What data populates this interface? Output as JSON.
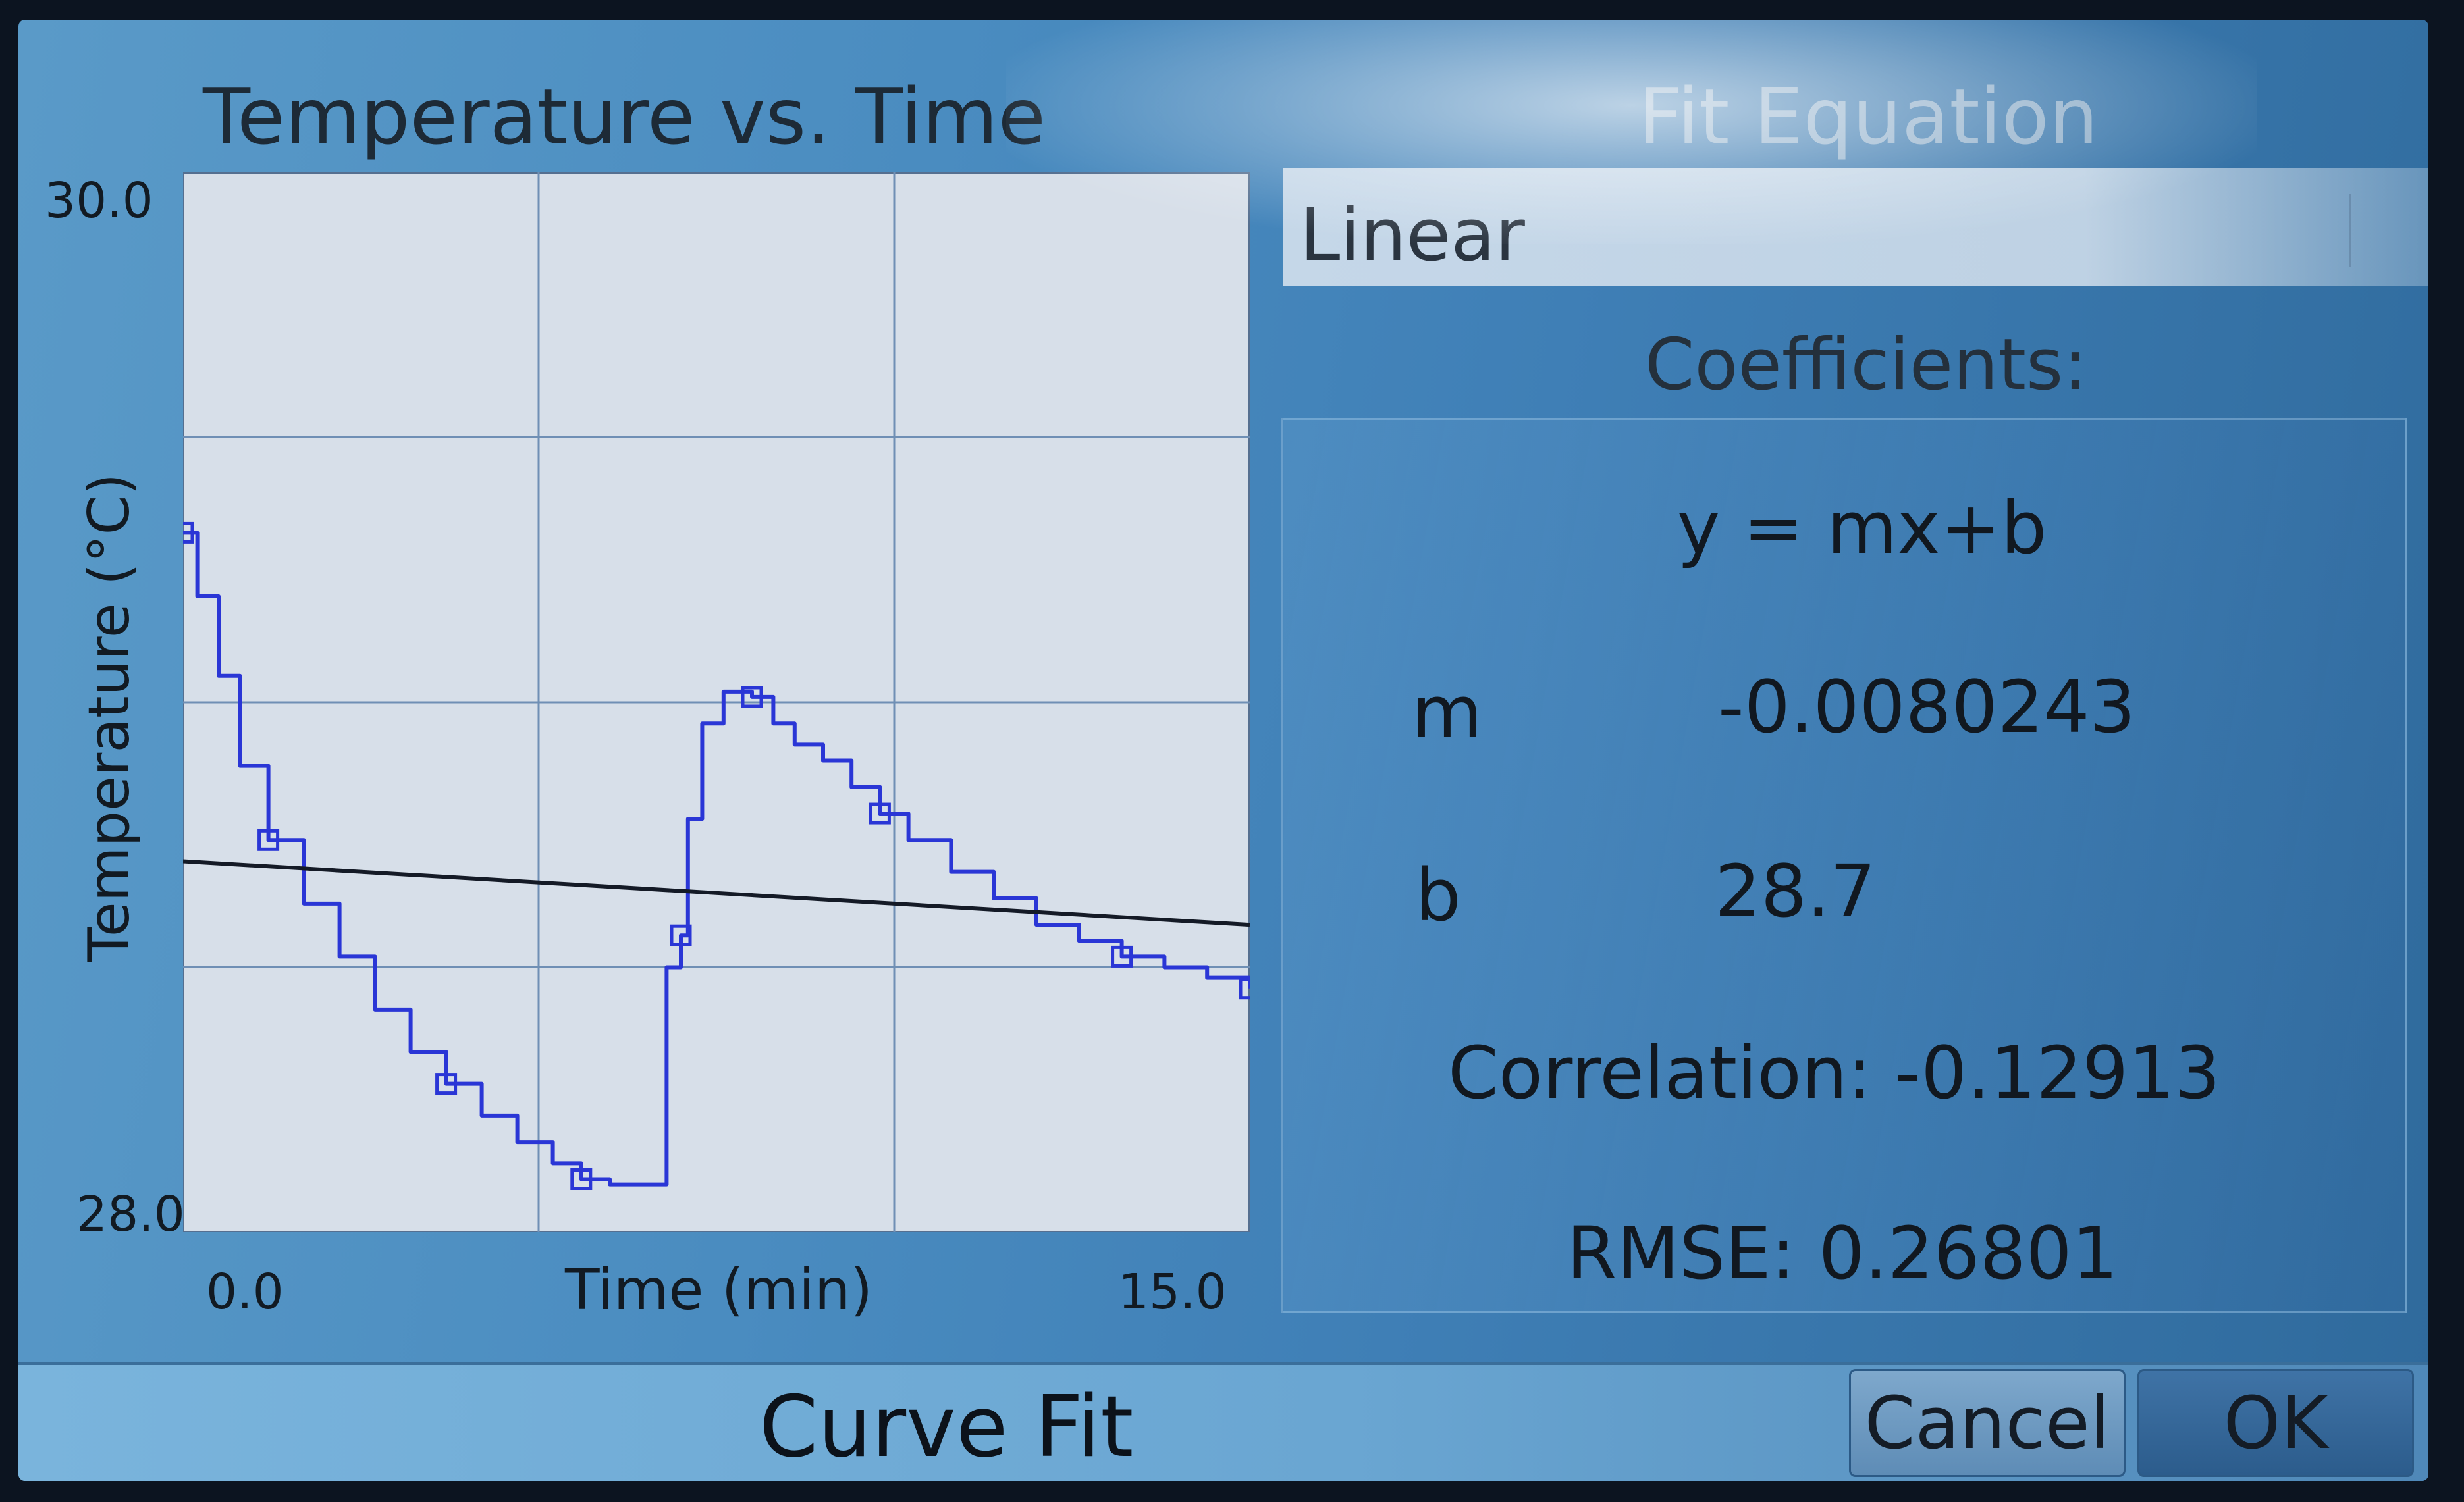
{
  "graph": {
    "title": "Temperature vs. Time",
    "y_axis_title": "Temperature (°C)",
    "x_axis_title": "Time (min)",
    "y_max_label": "30.0",
    "y_min_label": "28.0",
    "x_min_label": "0.0",
    "x_max_label": "15.0"
  },
  "fit_panel": {
    "title": "Fit Equation",
    "fit_type": "Linear",
    "coefficients_label": "Coefficients:",
    "equation": "y = mx+b",
    "m_label": "m",
    "m_value": "-0.0080243",
    "b_label": "b",
    "b_value": "28.7",
    "correlation_text": "Correlation: -0.12913",
    "rmse_text": "RMSE: 0.26801"
  },
  "dialog": {
    "title": "Curve Fit",
    "cancel_label": "Cancel",
    "ok_label": "OK"
  },
  "colors": {
    "data_line": "#2a36d6",
    "fit_line": "#141a26",
    "plot_bg": "#d7dfe9",
    "grid": "#6f8fb5"
  },
  "chart_data": {
    "type": "line",
    "title": "Temperature vs. Time",
    "xlabel": "Time (min)",
    "ylabel": "Temperature (°C)",
    "xlim": [
      0,
      15
    ],
    "ylim": [
      28,
      30
    ],
    "grid": true,
    "series": [
      {
        "x": [
          0.0,
          0.2,
          0.5,
          0.8,
          1.2,
          1.7,
          2.2,
          2.7,
          3.2,
          3.7,
          4.2,
          4.7,
          5.2,
          5.6,
          6.0,
          6.5,
          6.8,
          7.0,
          7.1,
          7.3,
          7.6,
          8.0,
          8.3,
          8.6,
          9.0,
          9.4,
          9.8,
          10.2,
          10.8,
          11.4,
          12.0,
          12.6,
          13.2,
          13.8,
          14.4,
          15.0
        ],
        "y": [
          29.32,
          29.2,
          29.05,
          28.88,
          28.74,
          28.62,
          28.52,
          28.42,
          28.34,
          28.28,
          28.22,
          28.17,
          28.13,
          28.1,
          28.09,
          28.09,
          28.5,
          28.56,
          28.78,
          28.96,
          29.02,
          29.01,
          28.96,
          28.92,
          28.89,
          28.84,
          28.79,
          28.74,
          28.68,
          28.63,
          28.58,
          28.55,
          28.52,
          28.5,
          28.48,
          28.46
        ]
      },
      {
        "x": [
          0,
          15
        ],
        "y": [
          28.7,
          28.58
        ]
      }
    ]
  }
}
